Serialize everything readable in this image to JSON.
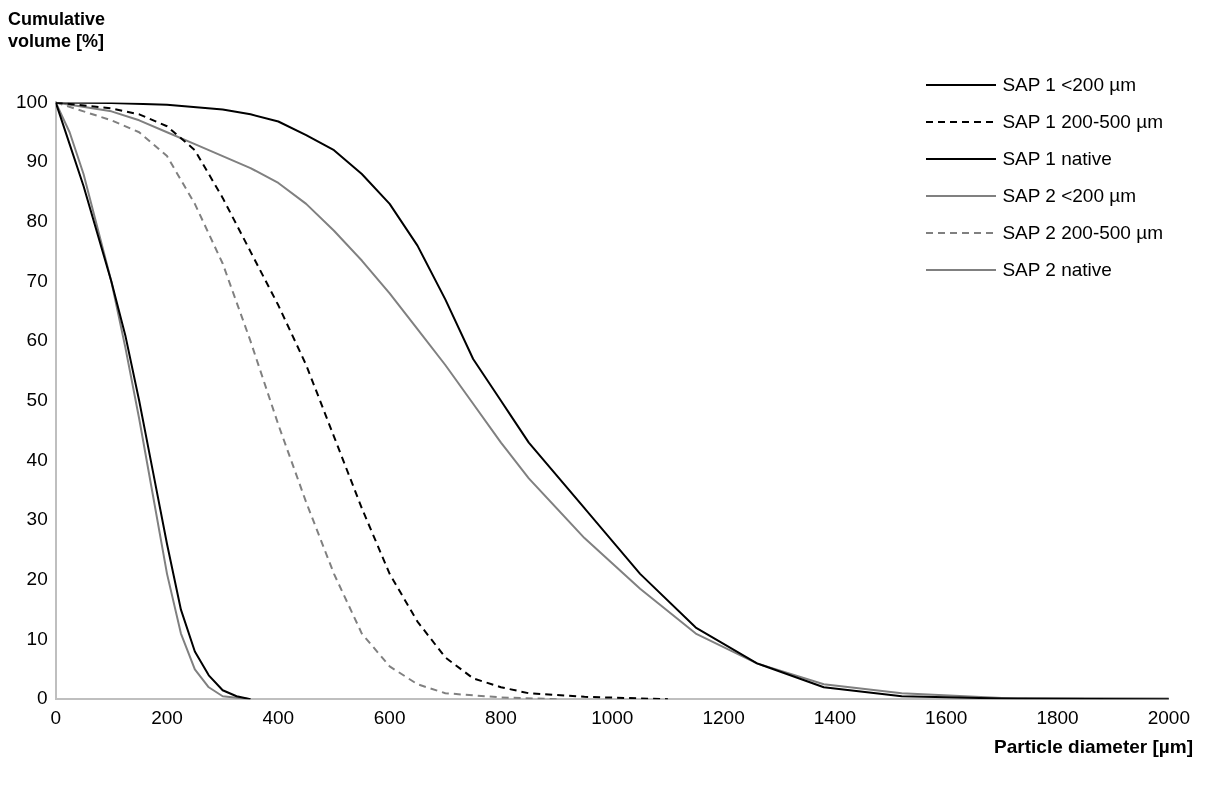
{
  "chart_data": {
    "type": "line",
    "xlabel": "Particle diameter [µm]",
    "ylabel": "Cumulative volume [%]",
    "xlim": [
      0,
      2000
    ],
    "xticks": [
      0,
      200,
      400,
      600,
      800,
      1000,
      1200,
      1400,
      1600,
      1800,
      2000
    ],
    "ylim": [
      0,
      100
    ],
    "yticks": [
      0,
      10,
      20,
      30,
      40,
      50,
      60,
      70,
      80,
      90,
      100
    ],
    "grid": false,
    "legend": "top right",
    "marker": "none",
    "series": [
      {
        "name": "SAP 1 <200 µm",
        "color": "#000000",
        "line_style": "solid",
        "x": [
          0,
          25,
          50,
          100,
          125,
          150,
          175,
          200,
          225,
          250,
          275,
          300,
          325,
          350
        ],
        "values": [
          100,
          93,
          86,
          70,
          61,
          50,
          38,
          26,
          15,
          8,
          4,
          1.5,
          0.5,
          0
        ]
      },
      {
        "name": "SAP 1 200-500 µm",
        "color": "#000000",
        "line_style": "dashed",
        "x": [
          0,
          100,
          150,
          200,
          250,
          300,
          350,
          400,
          450,
          500,
          550,
          600,
          650,
          700,
          750,
          800,
          850,
          950,
          1100
        ],
        "values": [
          100,
          99,
          98,
          96,
          92,
          84,
          75,
          66,
          56,
          44,
          32,
          21,
          13,
          7,
          3.5,
          2,
          1,
          0.4,
          0
        ]
      },
      {
        "name": "SAP 1 native",
        "color": "#000000",
        "line_style": "solid",
        "x": [
          0,
          100,
          200,
          300,
          350,
          400,
          450,
          500,
          550,
          600,
          650,
          700,
          750,
          800,
          850,
          950,
          1050,
          1150,
          1260,
          1380,
          1520,
          1700,
          2000
        ],
        "values": [
          100,
          99.9,
          99.6,
          98.8,
          98,
          96.8,
          94.5,
          92,
          88,
          83,
          76,
          67,
          57,
          50,
          43,
          32,
          21,
          12,
          6,
          2,
          0.5,
          0.1,
          0
        ]
      },
      {
        "name": "SAP 2 <200 µm",
        "color": "#808080",
        "line_style": "solid",
        "x": [
          0,
          25,
          50,
          100,
          125,
          150,
          175,
          200,
          225,
          250,
          275,
          300,
          350
        ],
        "values": [
          100,
          95,
          88,
          70,
          59,
          47,
          34,
          21,
          11,
          5,
          2,
          0.5,
          0
        ]
      },
      {
        "name": "SAP 2 200-500 µm",
        "color": "#808080",
        "line_style": "dashed",
        "x": [
          0,
          50,
          100,
          150,
          200,
          250,
          300,
          350,
          400,
          450,
          500,
          550,
          600,
          650,
          700,
          800,
          900
        ],
        "values": [
          100,
          98.5,
          97,
          95,
          91,
          83,
          73,
          60,
          46,
          33,
          21,
          11,
          5.5,
          2.5,
          1,
          0.3,
          0
        ]
      },
      {
        "name": "SAP 2 native",
        "color": "#808080",
        "line_style": "solid",
        "x": [
          0,
          100,
          150,
          200,
          250,
          300,
          350,
          400,
          450,
          500,
          550,
          600,
          650,
          700,
          750,
          800,
          850,
          950,
          1050,
          1150,
          1260,
          1380,
          1520,
          1700,
          2000
        ],
        "values": [
          100,
          98.5,
          97,
          95,
          93,
          91,
          89,
          86.5,
          83,
          78.5,
          73.5,
          68,
          62,
          56,
          49.5,
          43,
          37,
          27,
          18.5,
          11,
          6,
          2.5,
          1,
          0.2,
          0.1
        ]
      }
    ]
  }
}
